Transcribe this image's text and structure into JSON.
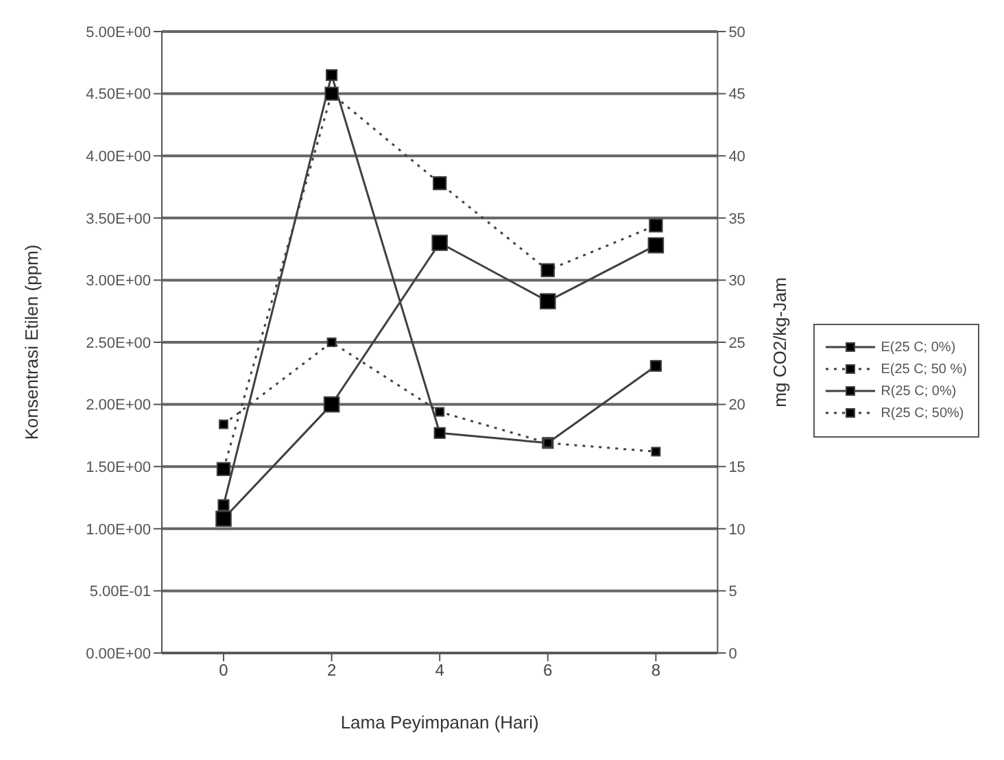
{
  "chart_data": {
    "type": "line",
    "xlabel": "Lama Peyimpanan (Hari)",
    "ylabel": "Konsentrasi Etilen (ppm)",
    "y2label": "mg CO2/kg-Jam",
    "categories": [
      "0",
      "2",
      "4",
      "6",
      "8"
    ],
    "series": [
      {
        "name": "E(25 C; 0%)",
        "color": "#404040",
        "line_style": "solid",
        "values": [
          1.08,
          2.0,
          3.3,
          2.83,
          3.28
        ]
      },
      {
        "name": "E(25 C; 50 %)",
        "color": "#404040",
        "line_style": "dotted",
        "values": [
          1.48,
          4.5,
          3.78,
          3.08,
          3.44
        ]
      },
      {
        "name": "R(25 C; 0%)",
        "color": "#404040",
        "line_style": "solid",
        "axis": "y2",
        "values": [
          11.9,
          46.5,
          17.7,
          16.9,
          23.1
        ]
      },
      {
        "name": "R(25 C; 50%)",
        "color": "#404040",
        "line_style": "dotted",
        "axis": "y2",
        "values": [
          18.4,
          25.0,
          19.4,
          16.9,
          16.2
        ]
      }
    ],
    "ylim": [
      0,
      5
    ],
    "yticks": [
      {
        "value": 0,
        "label": "0.00E+00"
      },
      {
        "value": 0.5,
        "label": "5.00E-01"
      },
      {
        "value": 1,
        "label": "1.00E+00"
      },
      {
        "value": 1.5,
        "label": "1.50E+00"
      },
      {
        "value": 2,
        "label": "2.00E+00"
      },
      {
        "value": 2.5,
        "label": "2.50E+00"
      },
      {
        "value": 3,
        "label": "3.00E+00"
      },
      {
        "value": 3.5,
        "label": "3.50E+00"
      },
      {
        "value": 4,
        "label": "4.00E+00"
      },
      {
        "value": 4.5,
        "label": "4.50E+00"
      },
      {
        "value": 5,
        "label": "5.00E+00"
      }
    ],
    "y2lim": [
      0,
      50
    ],
    "y2ticks": [
      0,
      5,
      10,
      15,
      20,
      25,
      30,
      35,
      40,
      45,
      50
    ],
    "grid": "y",
    "legend": "right",
    "marker": "square"
  }
}
